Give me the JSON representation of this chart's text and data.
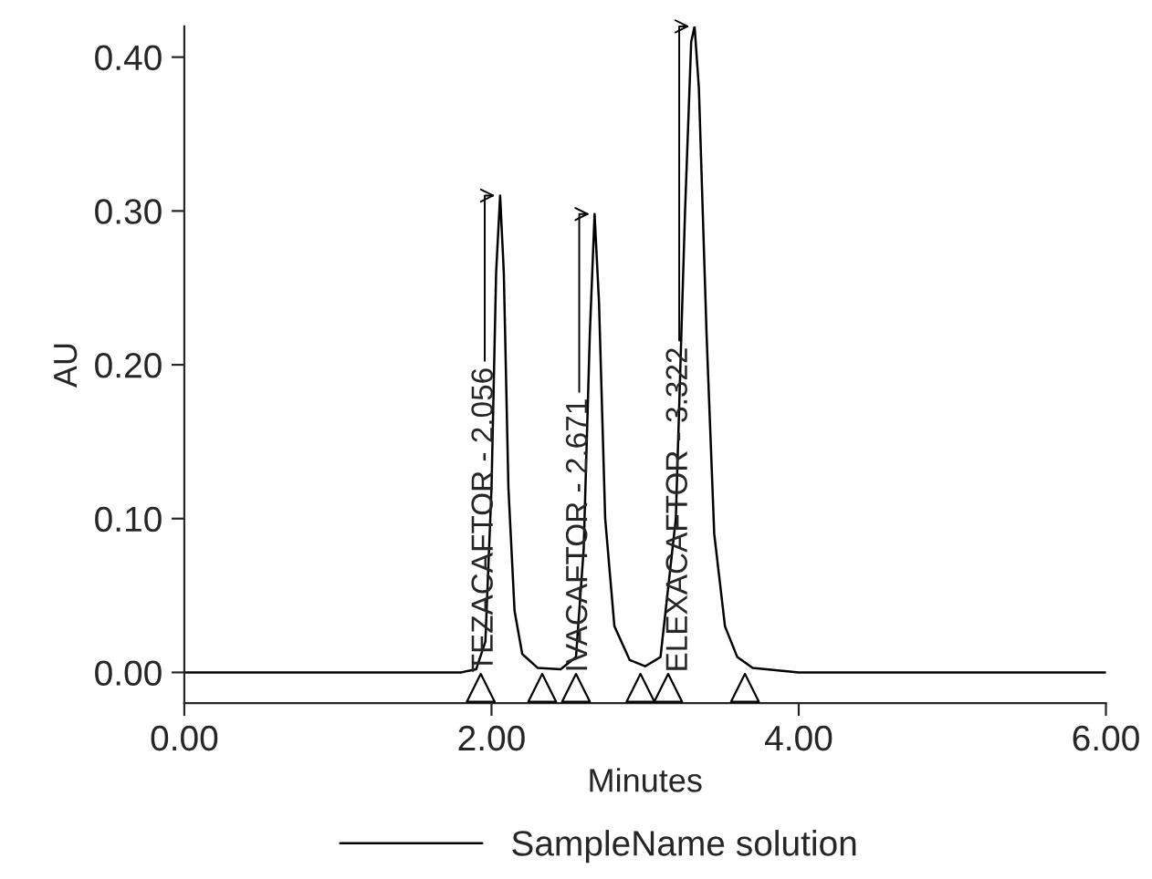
{
  "chart_data": {
    "type": "line",
    "xlabel": "Minutes",
    "ylabel": "AU",
    "xlim": [
      0,
      6
    ],
    "xticks": [
      {
        "value": 0,
        "label": "0.00"
      },
      {
        "value": 2,
        "label": "2.00"
      },
      {
        "value": 4,
        "label": "4.00"
      },
      {
        "value": 6,
        "label": "6.00"
      }
    ],
    "ylim": [
      -0.02,
      0.42
    ],
    "yticks": [
      {
        "value": 0,
        "label": "0.00"
      },
      {
        "value": 0.1,
        "label": "0.10"
      },
      {
        "value": 0.2,
        "label": "0.20"
      },
      {
        "value": 0.3,
        "label": "0.30"
      },
      {
        "value": 0.4,
        "label": "0.40"
      }
    ],
    "grid": false,
    "legend": "bottom",
    "series": [
      {
        "name": "SampleName solution",
        "color": "#000000",
        "marker": "none",
        "x": [
          0,
          1.8,
          1.9,
          1.96,
          2.0,
          2.03,
          2.056,
          2.08,
          2.11,
          2.15,
          2.2,
          2.3,
          2.45,
          2.55,
          2.6,
          2.64,
          2.671,
          2.7,
          2.74,
          2.8,
          2.9,
          3.0,
          3.1,
          3.2,
          3.26,
          3.3,
          3.322,
          3.35,
          3.4,
          3.45,
          3.52,
          3.6,
          3.7,
          4.0,
          6.0
        ],
        "values": [
          0,
          0,
          0.002,
          0.02,
          0.12,
          0.26,
          0.31,
          0.26,
          0.12,
          0.04,
          0.012,
          0.003,
          0.002,
          0.01,
          0.08,
          0.22,
          0.298,
          0.24,
          0.1,
          0.03,
          0.008,
          0.004,
          0.01,
          0.1,
          0.3,
          0.41,
          0.42,
          0.38,
          0.22,
          0.09,
          0.03,
          0.01,
          0.003,
          0,
          0
        ]
      },
      {
        "color": "#000000",
        "type": "scatter",
        "marker": "triangle",
        "x": [
          1.93,
          2.33,
          2.55,
          2.97,
          3.15,
          3.65
        ],
        "values": [
          -0.01,
          -0.01,
          -0.01,
          -0.01,
          -0.01,
          -0.01
        ]
      }
    ],
    "annotations": [
      {
        "text": "TEZACAFTOR - 2.056",
        "x": 2.056,
        "y": 0.31
      },
      {
        "text": "IVACAFTOR - 2.671",
        "x": 2.671,
        "y": 0.298
      },
      {
        "text": "ELEXACAFTOR - 3.322",
        "x": 3.322,
        "y": 0.42
      }
    ]
  }
}
